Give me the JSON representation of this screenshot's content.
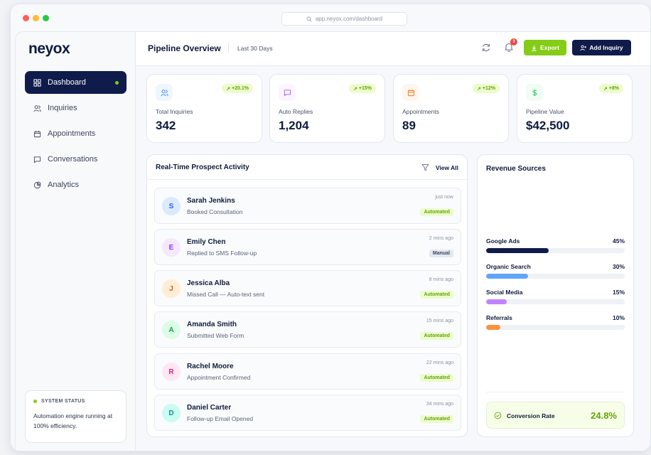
{
  "browser": {
    "url": "app.neyox.com/dashboard"
  },
  "sidebar": {
    "logo": "neyox",
    "items": [
      {
        "label": "Dashboard",
        "icon": "grid-icon",
        "active": true
      },
      {
        "label": "Inquiries",
        "icon": "users-icon",
        "active": false
      },
      {
        "label": "Appointments",
        "icon": "calendar-icon",
        "active": false
      },
      {
        "label": "Conversations",
        "icon": "chat-icon",
        "active": false
      },
      {
        "label": "Analytics",
        "icon": "pie-chart-icon",
        "active": false
      }
    ],
    "status": {
      "title": "SYSTEM STATUS",
      "text": "Automation engine running at 100% efficiency."
    }
  },
  "header": {
    "title": "Pipeline Overview",
    "range": "Last 30 Days",
    "notification_count": "3",
    "export_label": "Export",
    "add_label": "Add Inquiry"
  },
  "stats": [
    {
      "label": "Total Inquiries",
      "value": "342",
      "change": "+20.1%",
      "icon": "users-icon",
      "color": "#3b82f6",
      "bg": "#eff6ff"
    },
    {
      "label": "Auto Replies",
      "value": "1,204",
      "change": "+15%",
      "icon": "chat-icon",
      "color": "#a855f7",
      "bg": "#faf5ff"
    },
    {
      "label": "Appointments",
      "value": "89",
      "change": "+12%",
      "icon": "calendar-icon",
      "color": "#f97316",
      "bg": "#fff7ed"
    },
    {
      "label": "Pipeline Value",
      "value": "$42,500",
      "change": "+8%",
      "icon": "dollar-icon",
      "color": "#22c55e",
      "bg": "#f0fdf4"
    }
  ],
  "activity": {
    "title": "Real-Time Prospect Activity",
    "view_all": "View All",
    "rows": [
      {
        "initial": "S",
        "name": "Sarah Jenkins",
        "desc": "Booked Consultation",
        "time": "just now",
        "badge": "Automated",
        "badge_type": "auto",
        "avatar_bg": "#dbeafe",
        "avatar_color": "#2563eb"
      },
      {
        "initial": "E",
        "name": "Emily Chen",
        "desc": "Replied to SMS Follow-up",
        "time": "2 mins ago",
        "badge": "Manual",
        "badge_type": "manual",
        "avatar_bg": "#f3e8ff",
        "avatar_color": "#9333ea"
      },
      {
        "initial": "J",
        "name": "Jessica Alba",
        "desc": "Missed Call — Auto-text sent",
        "time": "8 mins ago",
        "badge": "Automated",
        "badge_type": "auto",
        "avatar_bg": "#ffedd5",
        "avatar_color": "#ea580c"
      },
      {
        "initial": "A",
        "name": "Amanda Smith",
        "desc": "Submitted Web Form",
        "time": "15 mins ago",
        "badge": "Automated",
        "badge_type": "auto",
        "avatar_bg": "#dcfce7",
        "avatar_color": "#16a34a"
      },
      {
        "initial": "R",
        "name": "Rachel Moore",
        "desc": "Appointment Confirmed",
        "time": "22 mins ago",
        "badge": "Automated",
        "badge_type": "auto",
        "avatar_bg": "#fce7f3",
        "avatar_color": "#db2777"
      },
      {
        "initial": "D",
        "name": "Daniel Carter",
        "desc": "Follow-up Email Opened",
        "time": "34 mins ago",
        "badge": "Automated",
        "badge_type": "auto",
        "avatar_bg": "#ccfbf1",
        "avatar_color": "#0d9488"
      }
    ]
  },
  "revenue": {
    "title": "Revenue Sources",
    "sources": [
      {
        "label": "Google Ads",
        "pct": "45%",
        "value": 45,
        "color": "#0f1b4a"
      },
      {
        "label": "Organic Search",
        "pct": "30%",
        "value": 30,
        "color": "#60a5fa"
      },
      {
        "label": "Social Media",
        "pct": "15%",
        "value": 15,
        "color": "#c084fc"
      },
      {
        "label": "Referrals",
        "pct": "10%",
        "value": 10,
        "color": "#fb923c"
      }
    ],
    "conversion_label": "Conversion Rate",
    "conversion_value": "24.8%"
  }
}
